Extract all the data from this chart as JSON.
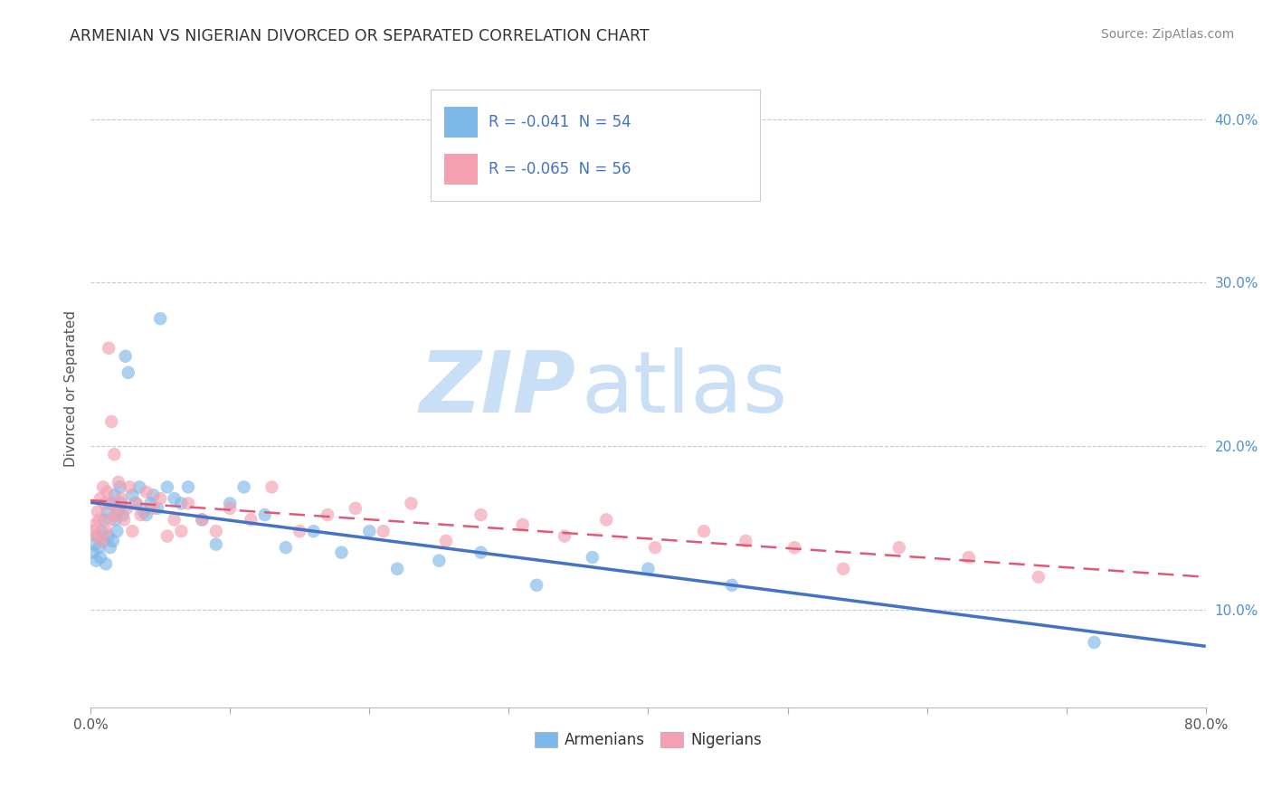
{
  "title": "ARMENIAN VS NIGERIAN DIVORCED OR SEPARATED CORRELATION CHART",
  "source": "Source: ZipAtlas.com",
  "ylabel": "Divorced or Separated",
  "xlim": [
    0.0,
    0.8
  ],
  "ylim": [
    0.04,
    0.43
  ],
  "xticks": [
    0.0,
    0.1,
    0.2,
    0.3,
    0.4,
    0.5,
    0.6,
    0.7,
    0.8
  ],
  "xticklabels_ends": [
    "0.0%",
    "80.0%"
  ],
  "yticks": [
    0.1,
    0.2,
    0.3,
    0.4
  ],
  "yticklabels": [
    "10.0%",
    "20.0%",
    "30.0%",
    "40.0%"
  ],
  "legend_text1": "R = -0.041  N = 54",
  "legend_text2": "R = -0.065  N = 56",
  "legend_label1": "Armenians",
  "legend_label2": "Nigerians",
  "color_armenian": "#7eb8e8",
  "color_nigerian": "#f4a0b0",
  "color_armenian_line": "#4472c4",
  "color_nigerian_line": "#e05878",
  "watermark_zip": "ZIP",
  "watermark_atlas": "atlas",
  "watermark_color": "#c8dff5",
  "title_color": "#333333",
  "source_color": "#888888",
  "legend_text_color": "#4472c4",
  "background_color": "#ffffff",
  "grid_color": "#c8c8d8",
  "scatter_alpha": 0.65,
  "scatter_size": 110,
  "armenian_x": [
    0.002,
    0.003,
    0.004,
    0.005,
    0.006,
    0.007,
    0.008,
    0.009,
    0.01,
    0.011,
    0.012,
    0.013,
    0.014,
    0.015,
    0.016,
    0.017,
    0.018,
    0.019,
    0.02,
    0.021,
    0.022,
    0.023,
    0.025,
    0.027,
    0.03,
    0.032,
    0.035,
    0.038,
    0.04,
    0.043,
    0.045,
    0.048,
    0.05,
    0.055,
    0.06,
    0.065,
    0.07,
    0.08,
    0.09,
    0.1,
    0.11,
    0.125,
    0.14,
    0.16,
    0.18,
    0.2,
    0.22,
    0.25,
    0.28,
    0.32,
    0.36,
    0.4,
    0.46,
    0.72
  ],
  "armenian_y": [
    0.135,
    0.14,
    0.13,
    0.145,
    0.138,
    0.132,
    0.148,
    0.142,
    0.155,
    0.128,
    0.16,
    0.145,
    0.138,
    0.165,
    0.142,
    0.17,
    0.155,
    0.148,
    0.16,
    0.175,
    0.165,
    0.158,
    0.255,
    0.245,
    0.17,
    0.165,
    0.175,
    0.16,
    0.158,
    0.165,
    0.17,
    0.162,
    0.278,
    0.175,
    0.168,
    0.165,
    0.175,
    0.155,
    0.14,
    0.165,
    0.175,
    0.158,
    0.138,
    0.148,
    0.135,
    0.148,
    0.125,
    0.13,
    0.135,
    0.115,
    0.132,
    0.125,
    0.115,
    0.08
  ],
  "nigerian_x": [
    0.002,
    0.003,
    0.004,
    0.005,
    0.006,
    0.007,
    0.008,
    0.009,
    0.01,
    0.011,
    0.012,
    0.013,
    0.014,
    0.015,
    0.016,
    0.017,
    0.018,
    0.019,
    0.02,
    0.022,
    0.024,
    0.026,
    0.028,
    0.03,
    0.033,
    0.036,
    0.04,
    0.045,
    0.05,
    0.055,
    0.06,
    0.065,
    0.07,
    0.08,
    0.09,
    0.1,
    0.115,
    0.13,
    0.15,
    0.17,
    0.19,
    0.21,
    0.23,
    0.255,
    0.28,
    0.31,
    0.34,
    0.37,
    0.405,
    0.44,
    0.47,
    0.505,
    0.54,
    0.58,
    0.63,
    0.68
  ],
  "nigerian_y": [
    0.148,
    0.152,
    0.145,
    0.16,
    0.155,
    0.168,
    0.142,
    0.175,
    0.165,
    0.148,
    0.172,
    0.26,
    0.155,
    0.215,
    0.165,
    0.195,
    0.158,
    0.162,
    0.178,
    0.168,
    0.155,
    0.162,
    0.175,
    0.148,
    0.165,
    0.158,
    0.172,
    0.162,
    0.168,
    0.145,
    0.155,
    0.148,
    0.165,
    0.155,
    0.148,
    0.162,
    0.155,
    0.175,
    0.148,
    0.158,
    0.162,
    0.148,
    0.165,
    0.142,
    0.158,
    0.152,
    0.145,
    0.155,
    0.138,
    0.148,
    0.142,
    0.138,
    0.125,
    0.138,
    0.132,
    0.12
  ]
}
